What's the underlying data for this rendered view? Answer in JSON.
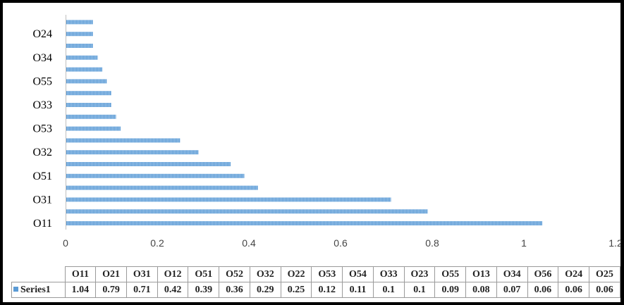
{
  "chart_data": {
    "type": "bar",
    "orientation": "horizontal",
    "categories": [
      "O11",
      "O21",
      "O31",
      "O12",
      "O51",
      "O52",
      "O32",
      "O22",
      "O53",
      "O54",
      "O33",
      "O23",
      "O55",
      "O13",
      "O34",
      "O56",
      "O24",
      "O25"
    ],
    "series": [
      {
        "name": "Series1",
        "color": "#5b9bd5",
        "values": [
          1.04,
          0.79,
          0.71,
          0.42,
          0.39,
          0.36,
          0.29,
          0.25,
          0.12,
          0.11,
          0.1,
          0.1,
          0.09,
          0.08,
          0.07,
          0.06,
          0.06,
          0.06
        ]
      }
    ],
    "value_labels": [
      "1.04",
      "0.79",
      "0.71",
      "0.42",
      "0.39",
      "0.36",
      "0.29",
      "0.25",
      "0.12",
      "0.11",
      "0.1",
      "0.1",
      "0.09",
      "0.08",
      "0.07",
      "0.06",
      "0.06",
      "0.06"
    ],
    "xlim": [
      0,
      1.2
    ],
    "x_ticks": [
      "0",
      "0.2",
      "0.4",
      "0.6",
      "0.8",
      "1",
      "1.2"
    ],
    "grid": false,
    "legend": "data-table"
  }
}
